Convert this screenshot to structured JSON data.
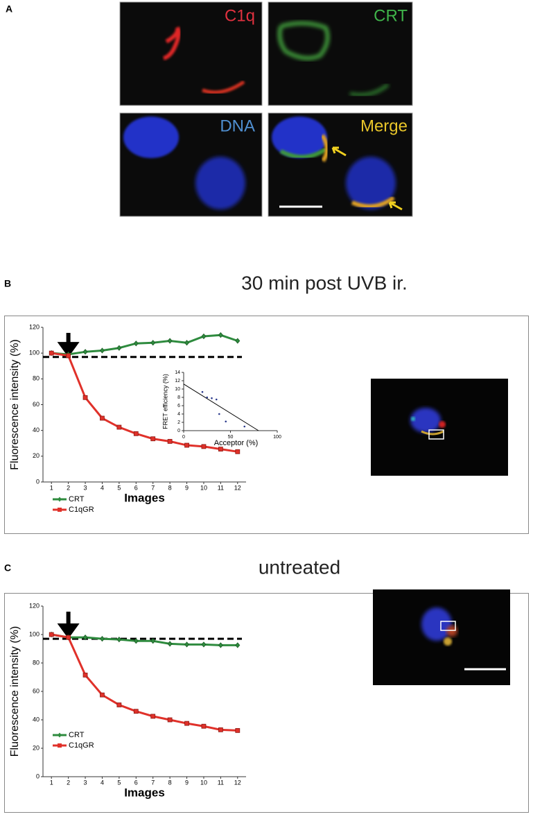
{
  "panel_labels": [
    "A",
    "B",
    "C"
  ],
  "micrographs": [
    "C1q",
    "CRT",
    "DNA",
    "Merge"
  ],
  "chart_data": [
    {
      "type": "line",
      "title": "30 min post UVB ir.",
      "x_label": "Images",
      "y_label": "Fluorescence intensity (%)",
      "x": [
        1,
        2,
        3,
        4,
        5,
        6,
        7,
        8,
        9,
        10,
        11,
        12
      ],
      "xlim": [
        0.5,
        12.5
      ],
      "xticks": [
        1,
        2,
        3,
        4,
        5,
        6,
        7,
        8,
        9,
        10,
        11,
        12
      ],
      "ylim": [
        0,
        120
      ],
      "yticks": [
        0,
        20,
        40,
        60,
        80,
        100,
        120
      ],
      "series": [
        {
          "name": "CRT",
          "color": "#2e8b3e",
          "marker": "diamond",
          "values": [
            100,
            99,
            101,
            102,
            104,
            107.5,
            108,
            109.5,
            108,
            113,
            114,
            109.5
          ]
        },
        {
          "name": "C1qGR",
          "color": "#e0312a",
          "marker": "square",
          "values": [
            100,
            98,
            65.5,
            49.5,
            42.5,
            37.5,
            33.5,
            31.5,
            28.5,
            27.5,
            25.5,
            23.5
          ]
        }
      ],
      "reference_line": 97,
      "arrow_at": 2,
      "legend": "lower left"
    },
    {
      "type": "scatter",
      "x_label": "Acceptor (%)",
      "y_label": "FRET efficiency (%)",
      "x": [
        20,
        25,
        30,
        35,
        38,
        45,
        65
      ],
      "values": [
        9.3,
        8,
        7.8,
        7.5,
        4,
        2.2,
        1
      ],
      "xlim": [
        0,
        100
      ],
      "xticks": [
        0,
        50,
        100
      ],
      "ylim": [
        0,
        14
      ],
      "yticks": [
        0,
        2,
        4,
        6,
        8,
        10,
        12,
        14
      ],
      "fit": {
        "x": [
          0,
          80
        ],
        "y": [
          11.2,
          0
        ]
      },
      "color": "#2b3a8c"
    },
    {
      "type": "line",
      "title": "untreated",
      "x_label": "Images",
      "y_label": "Fluorescence intensity (%)",
      "x": [
        1,
        2,
        3,
        4,
        5,
        6,
        7,
        8,
        9,
        10,
        11,
        12
      ],
      "xlim": [
        0.5,
        12.5
      ],
      "xticks": [
        1,
        2,
        3,
        4,
        5,
        6,
        7,
        8,
        9,
        10,
        11,
        12
      ],
      "ylim": [
        0,
        120
      ],
      "yticks": [
        0,
        20,
        40,
        60,
        80,
        100,
        120
      ],
      "series": [
        {
          "name": "CRT",
          "color": "#2e8b3e",
          "marker": "diamond",
          "values": [
            100,
            98,
            98,
            97,
            96.5,
            95.5,
            95.5,
            93.5,
            93,
            93,
            92.5,
            92.5
          ]
        },
        {
          "name": "C1qGR",
          "color": "#e0312a",
          "marker": "square",
          "values": [
            100,
            98,
            71.5,
            57.5,
            50.5,
            46,
            42.5,
            40,
            37.5,
            35.5,
            33,
            32.5
          ]
        }
      ],
      "reference_line": 97,
      "arrow_at": 2,
      "legend": "lower left"
    }
  ]
}
